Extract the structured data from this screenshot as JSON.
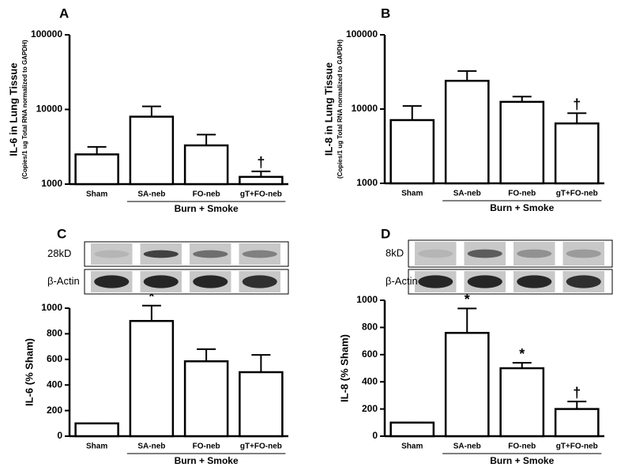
{
  "chart_data": [
    {
      "type": "bar",
      "panel": "A",
      "y_label": "IL-6 in Lung Tissue",
      "y_sublabel": "(Copies/1 ug Total RNA normalized to GAPDH)",
      "categories": [
        "Sham",
        "SA-neb",
        "FO-neb",
        "gT+FO-neb"
      ],
      "group_label": "Burn + Smoke",
      "values": [
        2500,
        8000,
        3300,
        1250
      ],
      "errors": [
        650,
        3000,
        1300,
        230
      ],
      "bar_labels": [
        null,
        null,
        null,
        "†"
      ],
      "log_scale": true,
      "ylim": [
        1000,
        100000
      ],
      "yticks": [
        1000,
        10000,
        100000
      ],
      "color": "#ffffff"
    },
    {
      "type": "bar",
      "panel": "B",
      "y_label": "IL-8 in Lung Tissue",
      "y_sublabel": "(Copies/1 ug Total RNA normalized to GAPDH)",
      "categories": [
        "Sham",
        "SA-neb",
        "FO-neb",
        "gT+FO-neb"
      ],
      "group_label": "Burn + Smoke",
      "values": [
        7100,
        24000,
        12500,
        6400
      ],
      "errors": [
        3900,
        8500,
        2200,
        2400
      ],
      "bar_labels": [
        null,
        null,
        null,
        "†"
      ],
      "log_scale": true,
      "ylim": [
        1000,
        100000
      ],
      "yticks": [
        1000,
        10000,
        100000
      ],
      "color": "#ffffff"
    },
    {
      "type": "bar",
      "panel": "C",
      "y_label": "IL-6 (% Sham)",
      "blot_labels": [
        "28kD",
        "β-Actin"
      ],
      "categories": [
        "Sham",
        "SA-neb",
        "FO-neb",
        "gT+FO-neb"
      ],
      "group_label": "Burn + Smoke",
      "values": [
        100,
        900,
        585,
        500
      ],
      "errors": [
        0,
        120,
        95,
        135
      ],
      "bar_labels": [
        null,
        "*",
        null,
        null
      ],
      "log_scale": false,
      "ylim": [
        0,
        1000
      ],
      "yticks": [
        0,
        200,
        400,
        600,
        800,
        1000
      ],
      "color": "#ffffff"
    },
    {
      "type": "bar",
      "panel": "D",
      "y_label": "IL-8 (% Sham)",
      "blot_labels": [
        "8kD",
        "β-Actin"
      ],
      "categories": [
        "Sham",
        "SA-neb",
        "FO-neb",
        "gT+FO-neb"
      ],
      "group_label": "Burn + Smoke",
      "values": [
        100,
        760,
        500,
        200
      ],
      "errors": [
        0,
        180,
        40,
        55
      ],
      "bar_labels": [
        null,
        "*",
        "*",
        "†"
      ],
      "log_scale": false,
      "ylim": [
        0,
        1000
      ],
      "yticks": [
        0,
        200,
        400,
        600,
        800,
        1000
      ],
      "color": "#ffffff"
    }
  ]
}
